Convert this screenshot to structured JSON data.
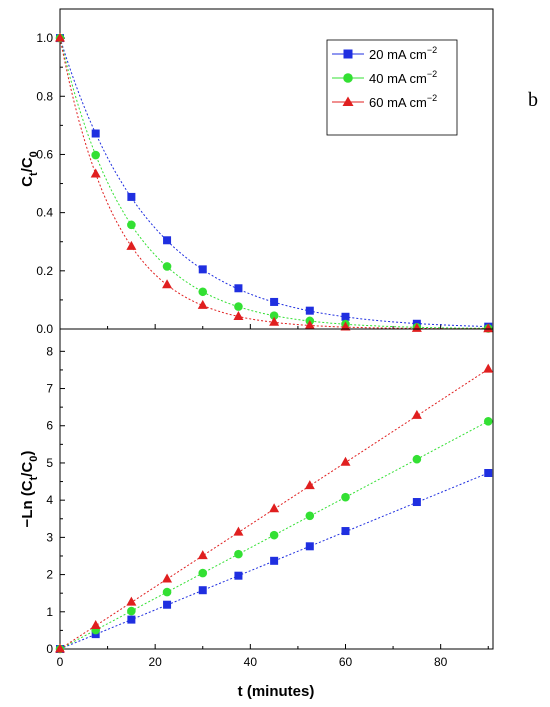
{
  "chart_data": [
    {
      "type": "scatter",
      "panel": "top",
      "x": [
        0,
        7.5,
        15,
        22.5,
        30,
        37.5,
        45,
        52.5,
        60,
        75,
        90
      ],
      "series": [
        {
          "name": "20 mA cm⁻²",
          "color": "#1f2fe0",
          "marker": "square",
          "values": [
            1.0,
            0.672,
            0.454,
            0.305,
            0.205,
            0.14,
            0.093,
            0.063,
            0.042,
            0.018,
            0.008
          ]
        },
        {
          "name": "40 mA cm⁻²",
          "color": "#33e033",
          "marker": "circle",
          "values": [
            1.0,
            0.598,
            0.358,
            0.215,
            0.128,
            0.077,
            0.046,
            0.028,
            0.017,
            0.006,
            0.002
          ]
        },
        {
          "name": "60 mA cm⁻²",
          "color": "#e01f1f",
          "marker": "triangle",
          "values": [
            1.0,
            0.533,
            0.284,
            0.152,
            0.081,
            0.043,
            0.023,
            0.012,
            0.007,
            0.002,
            0.001
          ]
        }
      ],
      "ylabel": "C_t/C_0",
      "xlim": [
        0,
        91
      ],
      "ylim": [
        0,
        1.1
      ],
      "yticks": [
        "0.0",
        "0.2",
        "0.4",
        "0.6",
        "0.8",
        "1.0"
      ],
      "legend_position": "top-right",
      "grid": false
    },
    {
      "type": "scatter",
      "panel": "bottom",
      "x": [
        0,
        7.5,
        15,
        22.5,
        30,
        37.5,
        45,
        52.5,
        60,
        75,
        90
      ],
      "series": [
        {
          "name": "20 mA cm⁻²",
          "color": "#1f2fe0",
          "marker": "square",
          "values": [
            0,
            0.4,
            0.79,
            1.19,
            1.58,
            1.97,
            2.37,
            2.76,
            3.17,
            3.95,
            4.73
          ]
        },
        {
          "name": "40 mA cm⁻²",
          "color": "#33e033",
          "marker": "circle",
          "values": [
            0,
            0.51,
            1.02,
            1.53,
            2.04,
            2.55,
            3.06,
            3.58,
            4.08,
            5.1,
            6.12
          ]
        },
        {
          "name": "60 mA cm⁻²",
          "color": "#e01f1f",
          "marker": "triangle",
          "values": [
            0,
            0.63,
            1.26,
            1.88,
            2.51,
            3.14,
            3.77,
            4.39,
            5.02,
            6.28,
            7.52
          ]
        }
      ],
      "xlabel": "t (minutes)",
      "ylabel": "−Ln (C_t/C_0)",
      "xlim": [
        0,
        91
      ],
      "ylim": [
        0,
        8.6
      ],
      "xticks": [
        "0",
        "20",
        "40",
        "60",
        "80"
      ],
      "yticks": [
        "0",
        "1",
        "2",
        "3",
        "4",
        "5",
        "6",
        "7",
        "8"
      ],
      "grid": false
    }
  ],
  "legend": {
    "items": [
      {
        "unit": "mA cm",
        "value": "20",
        "exp": "−2"
      },
      {
        "unit": "mA cm",
        "value": "40",
        "exp": "−2"
      },
      {
        "unit": "mA cm",
        "value": "60",
        "exp": "−2"
      }
    ]
  },
  "panel_letter": "b",
  "axis_titles": {
    "top_y_main": "C",
    "top_y_sub1": "t",
    "top_y_slash": "/C",
    "top_y_sub2": "0",
    "bottom_y_pre": "−Ln (C",
    "bottom_y_sub1": "t",
    "bottom_y_mid": "/C",
    "bottom_y_sub2": "0",
    "bottom_y_post": ")",
    "x_title": "t (minutes)"
  }
}
